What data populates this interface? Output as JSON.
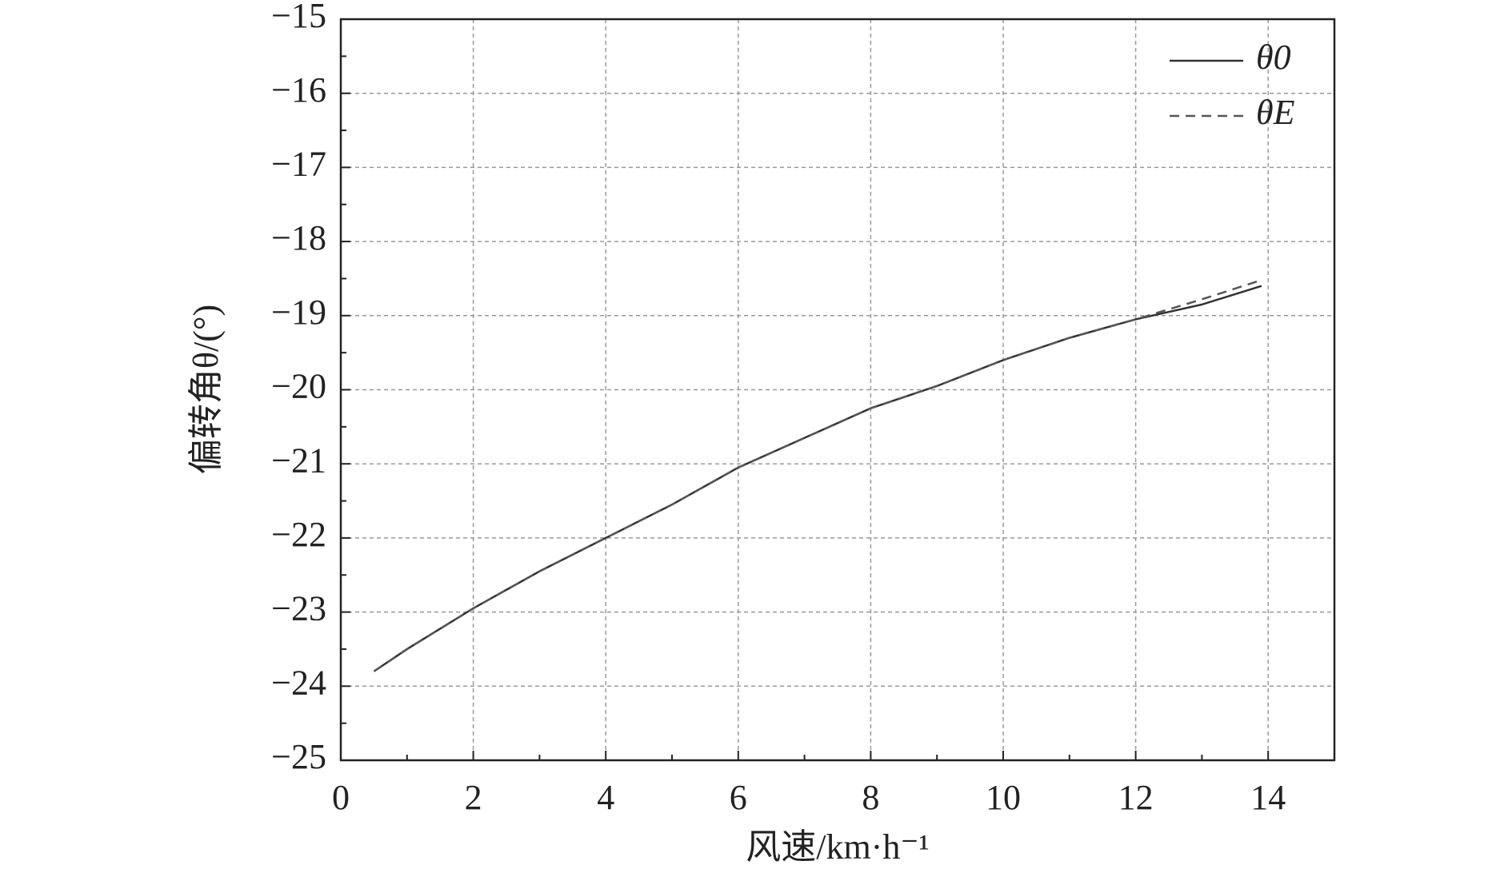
{
  "chart_data": {
    "type": "line",
    "x_label": "风速/km·h⁻¹",
    "y_label": "偏转角θ/(°)",
    "x": [
      0.5,
      1,
      2,
      3,
      4,
      5,
      6,
      7,
      8,
      9,
      10,
      11,
      12,
      13,
      13.9
    ],
    "series": [
      {
        "name": "θ0",
        "color": "#333333",
        "dash": false,
        "values": [
          -23.8,
          -23.5,
          -22.95,
          -22.45,
          -22.0,
          -21.55,
          -21.05,
          -20.65,
          -20.25,
          -19.95,
          -19.6,
          -19.3,
          -19.05,
          -18.85,
          -18.6
        ]
      },
      {
        "name": "θE",
        "color": "#555555",
        "dash": true,
        "values": [
          -23.8,
          -23.5,
          -22.95,
          -22.45,
          -22.0,
          -21.55,
          -21.05,
          -20.65,
          -20.25,
          -19.95,
          -19.6,
          -19.3,
          -19.05,
          -18.78,
          -18.52
        ]
      }
    ],
    "xlim": [
      0,
      15
    ],
    "ylim": [
      -25,
      -15
    ],
    "xticks": [
      0,
      2,
      4,
      6,
      8,
      10,
      12,
      14
    ],
    "yticks": [
      {
        "value": -25,
        "label": "−25"
      },
      {
        "value": -24,
        "label": "−24"
      },
      {
        "value": -23,
        "label": "−23"
      },
      {
        "value": -22,
        "label": "−22"
      },
      {
        "value": -21,
        "label": "−21"
      },
      {
        "value": -20,
        "label": "−20"
      },
      {
        "value": -19,
        "label": "−19"
      },
      {
        "value": -18,
        "label": "−18"
      },
      {
        "value": -17,
        "label": "−17"
      },
      {
        "value": -16,
        "label": "−16"
      },
      {
        "value": -15,
        "label": "−15"
      }
    ],
    "grid": true,
    "legend": "upper right"
  }
}
